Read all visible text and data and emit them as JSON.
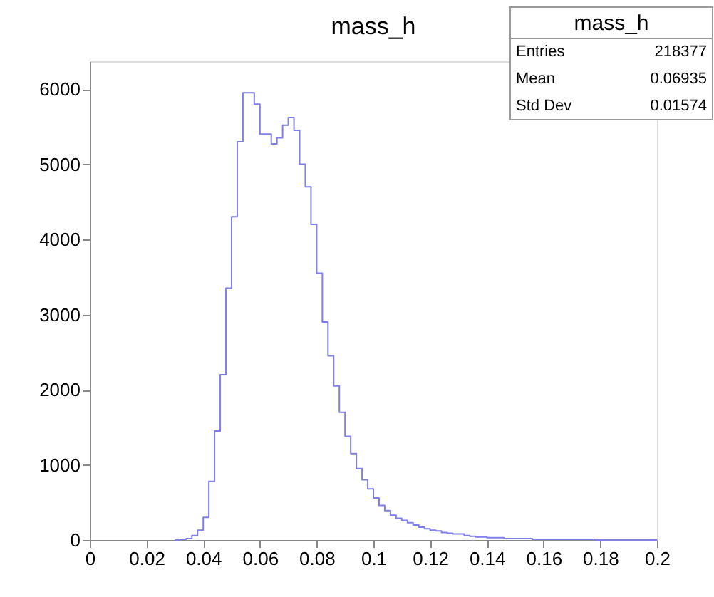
{
  "chart_data": {
    "type": "histogram",
    "title": "mass_h",
    "bins": [
      0.03,
      0.032,
      0.034,
      0.036,
      0.038,
      0.04,
      0.042,
      0.044,
      0.046,
      0.048,
      0.05,
      0.052,
      0.054,
      0.056,
      0.058,
      0.06,
      0.062,
      0.064,
      0.066,
      0.068,
      0.07,
      0.072,
      0.074,
      0.076,
      0.078,
      0.08,
      0.082,
      0.084,
      0.086,
      0.088,
      0.09,
      0.092,
      0.094,
      0.096,
      0.098,
      0.1,
      0.102,
      0.104,
      0.106,
      0.108,
      0.11,
      0.112,
      0.114,
      0.116,
      0.118,
      0.12,
      0.122,
      0.124,
      0.126,
      0.128,
      0.13,
      0.132,
      0.134,
      0.136,
      0.138,
      0.14,
      0.142,
      0.144,
      0.146,
      0.148,
      0.15,
      0.152,
      0.154,
      0.156,
      0.158,
      0.16,
      0.162,
      0.164,
      0.166,
      0.168,
      0.17,
      0.172,
      0.174,
      0.176,
      0.178,
      0.18,
      0.182,
      0.184,
      0.186,
      0.188,
      0.19,
      0.192,
      0.194,
      0.196,
      0.198,
      0.2
    ],
    "values": [
      0,
      10,
      20,
      60,
      130,
      300,
      780,
      1450,
      2200,
      3350,
      4300,
      5300,
      5950,
      5950,
      5800,
      5400,
      5400,
      5270,
      5350,
      5520,
      5620,
      5450,
      5000,
      4700,
      4200,
      3550,
      2900,
      2450,
      2050,
      1700,
      1380,
      1150,
      950,
      800,
      680,
      560,
      460,
      390,
      330,
      290,
      260,
      230,
      200,
      170,
      150,
      130,
      120,
      100,
      90,
      80,
      80,
      60,
      50,
      40,
      40,
      30,
      30,
      30,
      20,
      20,
      20,
      20,
      20,
      10,
      10,
      10,
      10,
      10,
      10,
      10,
      10,
      10,
      10,
      10,
      0,
      0,
      0,
      0,
      0,
      0,
      0,
      0,
      0,
      0,
      0
    ],
    "color": "#7f7fe8",
    "xlim": [
      0,
      0.2
    ],
    "xticks": [
      0,
      0.02,
      0.04,
      0.06,
      0.08,
      0.1,
      0.12,
      0.14,
      0.16,
      0.18,
      0.2
    ],
    "ylim": [
      0,
      6370
    ],
    "yticks": [
      0,
      1000,
      2000,
      3000,
      4000,
      5000,
      6000
    ],
    "grid": false,
    "annotations": [
      "mass_h",
      "Entries",
      "218377",
      "Mean",
      "0.06935",
      "Std Dev",
      "0.01574"
    ]
  }
}
